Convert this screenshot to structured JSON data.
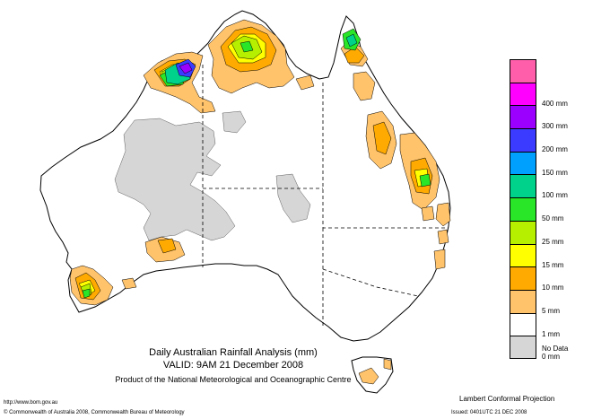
{
  "title": {
    "line1": "Daily Australian Rainfall Analysis (mm)",
    "line2": "VALID: 9AM 21 December 2008",
    "line3": "Product of the National Meteorological and Oceanographic Centre"
  },
  "legend": {
    "items": [
      {
        "label": "",
        "color": "#ff5faa"
      },
      {
        "label": "400 mm",
        "color": "#ff00ff"
      },
      {
        "label": "300 mm",
        "color": "#9b00ff"
      },
      {
        "label": "200 mm",
        "color": "#3b3bff"
      },
      {
        "label": "150 mm",
        "color": "#00a0ff"
      },
      {
        "label": "100 mm",
        "color": "#00d28c"
      },
      {
        "label": "50 mm",
        "color": "#29e629"
      },
      {
        "label": "25 mm",
        "color": "#b6f000"
      },
      {
        "label": "15 mm",
        "color": "#ffff00"
      },
      {
        "label": "10 mm",
        "color": "#ffaa00"
      },
      {
        "label": "5 mm",
        "color": "#ffc36b"
      },
      {
        "label": "1 mm",
        "color": "#ffffff"
      },
      {
        "label": "0 mm",
        "color": "#d6d6d6"
      }
    ],
    "no_data_label": "No Data"
  },
  "footer": {
    "url": "http://www.bom.gov.au",
    "copyright": "© Commonwealth of Australia 2008, Commonwealth Bureau of Meteorology",
    "projection": "Lambert Conformal Projection",
    "issued": "Issued: 0401UTC 21 DEC 2008"
  },
  "colors": {
    "coast": "#000000",
    "state_border": "#000000",
    "no_data": "#d6d6d6",
    "light_rain": "#ffc36b",
    "moderate_rain": "#ffaa00"
  }
}
